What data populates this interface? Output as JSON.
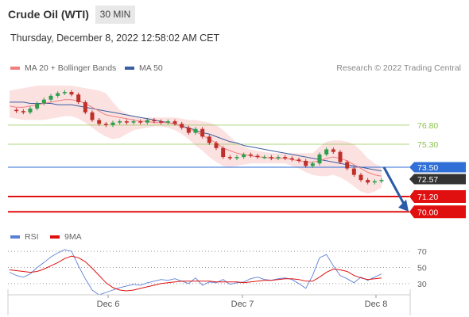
{
  "header": {
    "title": "Crude Oil (WTI)",
    "timeframe": "30 MIN"
  },
  "datetime": "Thursday, December 8, 2022 12:58:02 AM CET",
  "legend": {
    "ma20_label": "MA 20 + Bollinger Bands",
    "ma20_color": "#f08080",
    "ma50_label": "MA 50",
    "ma50_color": "#3a5fa0",
    "copyright": "Research © 2022 Trading Central"
  },
  "rsi_legend": {
    "rsi_label": "RSI",
    "rsi_color": "#5b7fd6",
    "ma9_label": "9MA",
    "ma9_color": "#e01010"
  },
  "colors": {
    "resistance": "#8bc34a",
    "pivot": "#2f6fd6",
    "support": "#e01010",
    "candle_up": "#2e9e4e",
    "candle_down": "#c0302a",
    "bb_fill": "#fcdede",
    "arrow": "#2a5aa8",
    "current_price_bg": "#333333"
  },
  "chart_data": [
    {
      "type": "line",
      "title": "",
      "x_ticks": [
        "Dec 6",
        "Dec 7",
        "Dec 8"
      ],
      "ylim": [
        68.9,
        79.9
      ],
      "levels": [
        {
          "name": "resistance",
          "value": 76.8,
          "label": "76.80"
        },
        {
          "name": "resistance",
          "value": 75.3,
          "label": "75.30"
        },
        {
          "name": "pivot",
          "value": 73.5,
          "label": "73.50"
        },
        {
          "name": "current",
          "value": 72.57,
          "label": "72.57"
        },
        {
          "name": "support",
          "value": 71.2,
          "label": "71.20"
        },
        {
          "name": "support",
          "value": 70.0,
          "label": "70.00"
        }
      ],
      "price": [
        78.0,
        77.9,
        77.8,
        78.1,
        78.5,
        78.8,
        79.1,
        79.3,
        79.4,
        79.2,
        78.6,
        77.8,
        77.2,
        76.9,
        76.8,
        77.0,
        77.1,
        77.0,
        77.1,
        77.0,
        77.2,
        77.1,
        77.0,
        77.1,
        76.9,
        76.6,
        76.2,
        76.5,
        75.9,
        75.4,
        75.0,
        74.3,
        74.2,
        74.3,
        74.5,
        74.4,
        74.3,
        74.3,
        74.2,
        74.3,
        74.2,
        74.1,
        74.0,
        73.6,
        73.8,
        74.5,
        74.9,
        74.7,
        73.9,
        73.4,
        72.9,
        72.5,
        72.3,
        72.4,
        72.5
      ],
      "ma20": [
        78.3,
        78.2,
        78.2,
        78.3,
        78.4,
        78.5,
        78.6,
        78.7,
        78.8,
        78.8,
        78.7,
        78.5,
        78.2,
        77.9,
        77.6,
        77.5,
        77.4,
        77.3,
        77.2,
        77.1,
        77.1,
        77.0,
        77.0,
        77.0,
        76.9,
        76.7,
        76.5,
        76.3,
        76.0,
        75.7,
        75.4,
        75.0,
        74.8,
        74.6,
        74.5,
        74.4,
        74.3,
        74.3,
        74.2,
        74.2,
        74.2,
        74.1,
        74.0,
        73.9,
        73.9,
        74.0,
        74.2,
        74.3,
        74.2,
        74.0,
        73.7,
        73.4,
        73.1,
        72.9,
        72.8
      ],
      "ma50": [
        78.6,
        78.6,
        78.6,
        78.5,
        78.5,
        78.5,
        78.5,
        78.4,
        78.4,
        78.4,
        78.3,
        78.2,
        78.1,
        78.0,
        77.9,
        77.8,
        77.7,
        77.6,
        77.5,
        77.4,
        77.3,
        77.2,
        77.1,
        77.0,
        76.9,
        76.7,
        76.6,
        76.4,
        76.2,
        76.1,
        75.9,
        75.7,
        75.5,
        75.4,
        75.2,
        75.1,
        75.0,
        74.9,
        74.8,
        74.7,
        74.6,
        74.5,
        74.4,
        74.3,
        74.2,
        74.1,
        74.0,
        73.9,
        73.8,
        73.7,
        73.6,
        73.5,
        73.4,
        73.3,
        73.2
      ],
      "bb_upper": [
        79.5,
        79.6,
        79.7,
        79.8,
        79.9,
        79.9,
        79.9,
        79.9,
        79.9,
        79.9,
        79.8,
        79.7,
        79.6,
        79.5,
        79.3,
        78.6,
        78.0,
        77.7,
        77.5,
        77.4,
        77.4,
        77.4,
        77.4,
        77.4,
        77.4,
        77.3,
        77.2,
        77.2,
        77.1,
        77.0,
        76.8,
        76.4,
        75.9,
        75.4,
        75.1,
        74.9,
        74.8,
        74.7,
        74.6,
        74.6,
        74.6,
        74.6,
        74.6,
        74.6,
        74.6,
        75.1,
        75.5,
        75.6,
        75.6,
        75.5,
        75.3,
        74.8,
        74.2,
        73.8,
        73.5
      ],
      "bb_lower": [
        77.4,
        77.3,
        77.2,
        77.2,
        77.2,
        77.2,
        77.3,
        77.4,
        77.5,
        77.5,
        77.3,
        77.0,
        76.6,
        76.2,
        75.9,
        75.7,
        75.8,
        76.1,
        76.4,
        76.5,
        76.6,
        76.7,
        76.7,
        76.6,
        76.4,
        76.1,
        75.7,
        75.2,
        74.8,
        74.3,
        73.9,
        73.6,
        73.5,
        73.6,
        73.7,
        73.8,
        73.8,
        73.8,
        73.8,
        73.8,
        73.8,
        73.6,
        73.4,
        73.1,
        72.9,
        72.8,
        72.8,
        72.9,
        72.7,
        72.4,
        72.0,
        71.6,
        71.4,
        71.6,
        71.9
      ]
    },
    {
      "type": "line",
      "title": "",
      "ylim": [
        20,
        75
      ],
      "y_ticks": [
        70,
        50,
        30
      ],
      "series": [
        {
          "name": "RSI",
          "values": [
            44,
            40,
            38,
            42,
            50,
            56,
            63,
            68,
            72,
            70,
            52,
            36,
            22,
            16,
            19,
            22,
            25,
            27,
            29,
            28,
            31,
            33,
            35,
            34,
            36,
            33,
            30,
            37,
            28,
            32,
            31,
            35,
            29,
            31,
            32,
            36,
            38,
            35,
            34,
            36,
            37,
            35,
            30,
            24,
            40,
            62,
            66,
            52,
            40,
            36,
            31,
            38,
            34,
            38,
            42
          ]
        },
        {
          "name": "9MA",
          "values": [
            47,
            46,
            45,
            44,
            45,
            48,
            52,
            56,
            61,
            64,
            62,
            57,
            49,
            40,
            31,
            25,
            22,
            21,
            22,
            24,
            26,
            28,
            30,
            31,
            32,
            33,
            33,
            33,
            33,
            33,
            32,
            32,
            32,
            32,
            31,
            32,
            33,
            34,
            34,
            35,
            36,
            36,
            35,
            33,
            33,
            38,
            44,
            48,
            47,
            45,
            40,
            37,
            35,
            36,
            37
          ]
        }
      ]
    }
  ]
}
